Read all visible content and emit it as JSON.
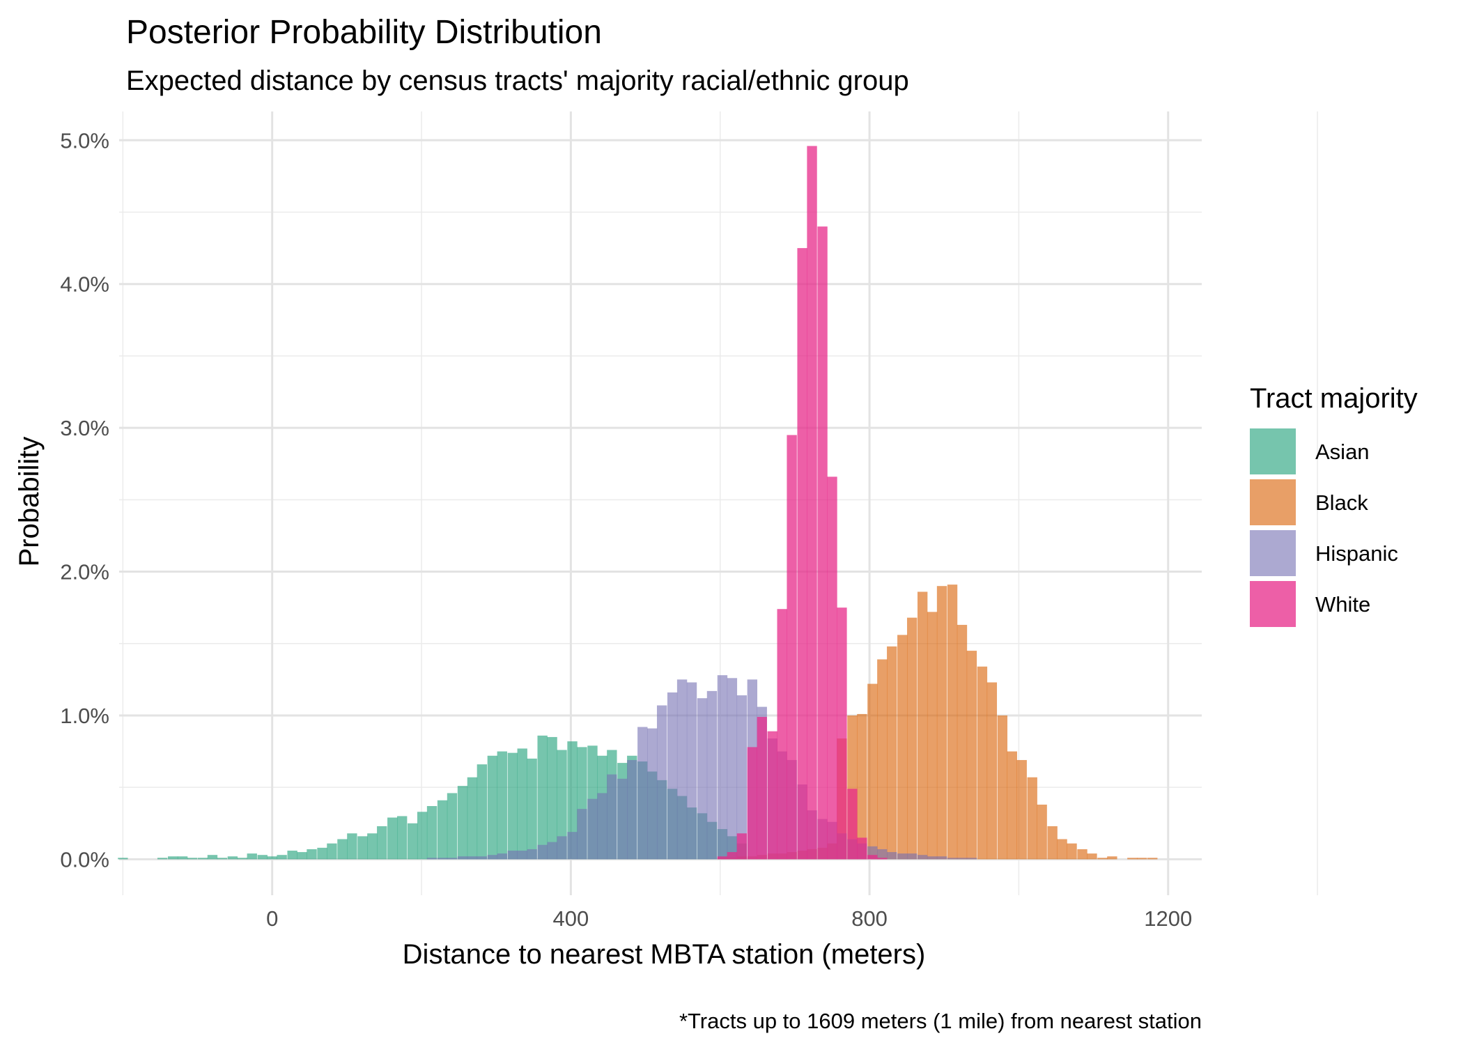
{
  "chart_data": {
    "type": "bar",
    "title": "Posterior Probability Distribution",
    "subtitle": "Expected distance by census tracts' majority racial/ethnic group",
    "xlabel": "Distance to nearest MBTA station (meters)",
    "ylabel": "Probability",
    "caption": "*Tracts up to 1609 meters (1 mile) from nearest station",
    "xlim": [
      -205,
      1245
    ],
    "ylim": [
      -0.0025,
      0.052
    ],
    "bin_width": 13.4,
    "x_ticks": [
      0,
      400,
      800,
      1200
    ],
    "x_tick_labels": [
      "0",
      "400",
      "800",
      "1200"
    ],
    "y_ticks": [
      0,
      0.01,
      0.02,
      0.03,
      0.04,
      0.05
    ],
    "y_tick_labels": [
      "0.0%",
      "1.0%",
      "2.0%",
      "3.0%",
      "4.0%",
      "5.0%"
    ],
    "grid": true,
    "legend": {
      "title": "Tract majority",
      "position": "right"
    },
    "series": [
      {
        "name": "Asian",
        "color": "#1B9E77",
        "opacity": 0.6,
        "x": [
          -200,
          -187,
          -173,
          -160,
          -147,
          -133,
          -120,
          -107,
          -93,
          -80,
          -67,
          -53,
          -40,
          -27,
          -13,
          0,
          13,
          27,
          40,
          53,
          67,
          80,
          94,
          107,
          121,
          134,
          147,
          161,
          174,
          188,
          201,
          214,
          228,
          241,
          255,
          268,
          281,
          295,
          308,
          322,
          335,
          348,
          362,
          375,
          388,
          402,
          415,
          429,
          442,
          455,
          469,
          482,
          496,
          509,
          522,
          536,
          549,
          562,
          576,
          589,
          603,
          616,
          629
        ],
        "values": [
          0.0001,
          0,
          0,
          0,
          0.0001,
          0.0002,
          0.0002,
          0.0001,
          0.0001,
          0.0003,
          0.0001,
          0.0002,
          0.0001,
          0.0004,
          0.0003,
          0.0002,
          0.0003,
          0.0006,
          0.0005,
          0.0007,
          0.0008,
          0.0011,
          0.0014,
          0.0018,
          0.0016,
          0.0018,
          0.0023,
          0.0029,
          0.003,
          0.0025,
          0.0033,
          0.0037,
          0.0041,
          0.0046,
          0.0051,
          0.0057,
          0.0066,
          0.0072,
          0.0075,
          0.0074,
          0.0077,
          0.007,
          0.0086,
          0.0085,
          0.0076,
          0.0082,
          0.0078,
          0.0079,
          0.0072,
          0.0076,
          0.0067,
          0.0072,
          0.0068,
          0.0061,
          0.0055,
          0.0049,
          0.0044,
          0.0036,
          0.0032,
          0.0026,
          0.0021,
          0.0016,
          0.0011
        ]
      },
      {
        "name": "Black",
        "color": "#D95F02",
        "opacity": 0.6,
        "x": [
          589,
          603,
          616,
          629,
          643,
          656,
          670,
          683,
          696,
          710,
          723,
          737,
          750,
          763,
          777,
          790,
          804,
          817,
          830,
          844,
          857,
          871,
          884,
          897,
          911,
          924,
          937,
          951,
          964,
          978,
          991,
          1004,
          1018,
          1031,
          1045,
          1058,
          1071,
          1085,
          1098,
          1112,
          1125,
          1138,
          1152,
          1165,
          1179
        ],
        "values": [
          0,
          0.0001,
          0.0001,
          0.0002,
          0.0002,
          0.0003,
          0.0004,
          0.0004,
          0.0005,
          0.0006,
          0.0007,
          0.0008,
          0.0011,
          0.0084,
          0.01,
          0.0101,
          0.0122,
          0.0139,
          0.0148,
          0.0156,
          0.0168,
          0.0186,
          0.0172,
          0.019,
          0.0191,
          0.0163,
          0.0145,
          0.0134,
          0.0123,
          0.01,
          0.0075,
          0.0069,
          0.0057,
          0.0038,
          0.0023,
          0.0014,
          0.0011,
          0.0007,
          0.0004,
          0.0001,
          0.0002,
          0,
          0.0001,
          0.0001,
          0.0001
        ]
      },
      {
        "name": "Hispanic",
        "color": "#7570B3",
        "opacity": 0.6,
        "x": [
          201,
          214,
          228,
          241,
          255,
          268,
          281,
          295,
          308,
          322,
          335,
          348,
          362,
          375,
          388,
          402,
          415,
          429,
          442,
          455,
          469,
          482,
          496,
          509,
          522,
          536,
          549,
          562,
          576,
          589,
          603,
          616,
          629,
          643,
          656,
          670,
          683,
          696,
          710,
          723,
          737,
          750,
          763,
          777,
          790,
          804,
          817,
          830,
          844,
          857,
          871,
          884,
          897,
          911,
          924,
          937,
          951
        ],
        "values": [
          0,
          0.0001,
          0.0001,
          0.0001,
          0.0002,
          0.0002,
          0.0002,
          0.0003,
          0.0004,
          0.0006,
          0.0006,
          0.0007,
          0.001,
          0.0012,
          0.0016,
          0.0019,
          0.0035,
          0.0042,
          0.0046,
          0.0059,
          0.0056,
          0.0069,
          0.0092,
          0.0091,
          0.0107,
          0.0116,
          0.0125,
          0.0123,
          0.0112,
          0.0117,
          0.0128,
          0.0126,
          0.0114,
          0.0125,
          0.0106,
          0.0084,
          0.0075,
          0.0069,
          0.0052,
          0.0034,
          0.0028,
          0.0026,
          0.0018,
          0.0014,
          0.0011,
          0.0009,
          0.0007,
          0.0005,
          0.0004,
          0.0004,
          0.0003,
          0.0002,
          0.0002,
          0.0001,
          0.0001,
          0.0001,
          0
        ]
      },
      {
        "name": "White",
        "color": "#E7298A",
        "opacity": 0.75,
        "x": [
          603,
          616,
          629,
          643,
          656,
          670,
          683,
          696,
          710,
          723,
          737,
          750,
          763,
          777,
          790,
          804,
          817
        ],
        "values": [
          0.0002,
          0.0005,
          0.0018,
          0.0078,
          0.0099,
          0.0089,
          0.0174,
          0.0295,
          0.0425,
          0.0496,
          0.044,
          0.0266,
          0.0175,
          0.0049,
          0.0015,
          0.0003,
          0.0001
        ]
      }
    ]
  }
}
